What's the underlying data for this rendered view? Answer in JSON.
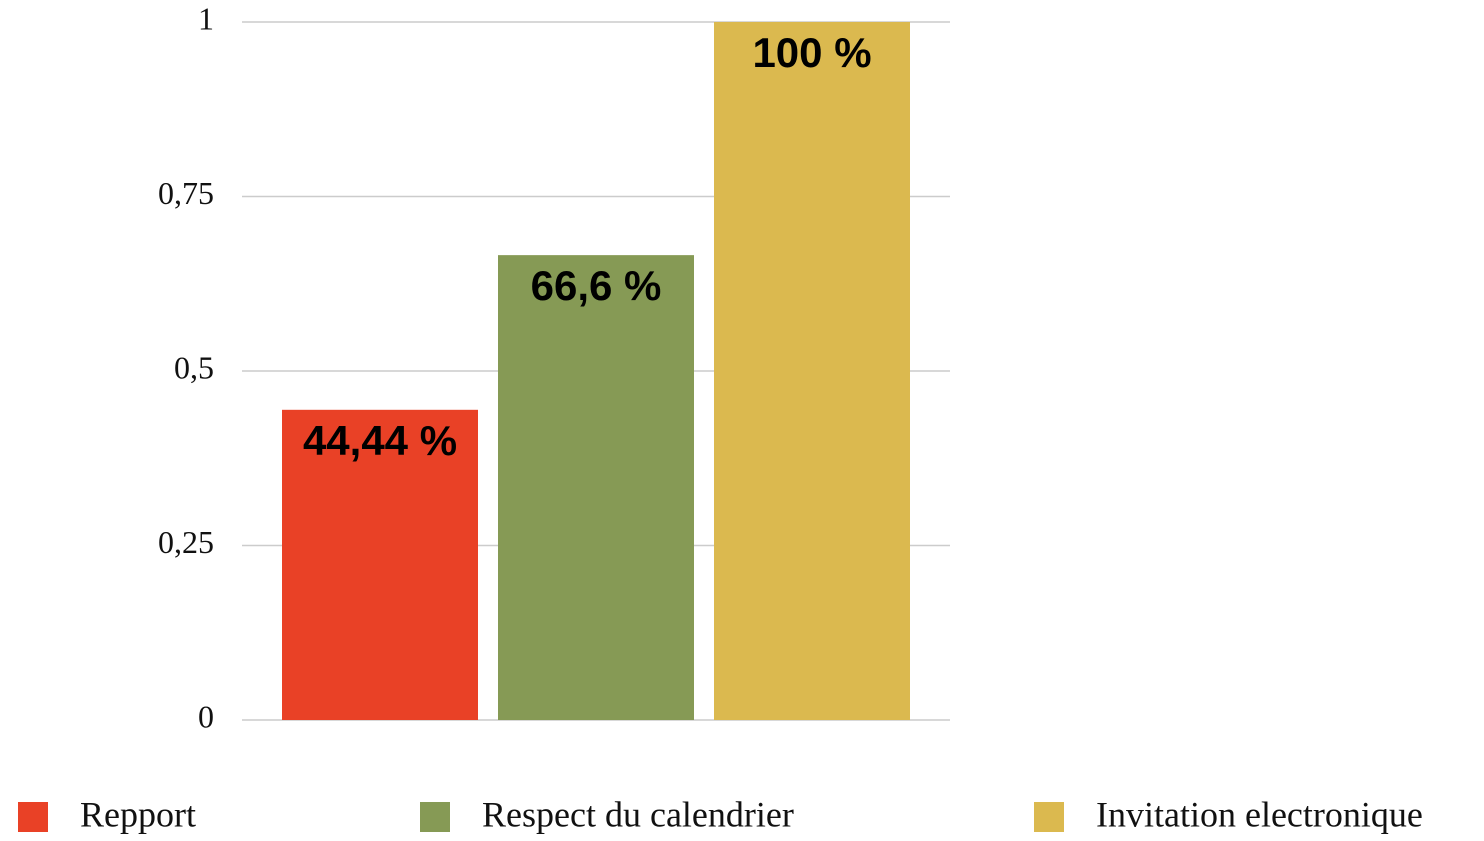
{
  "chart_data": {
    "type": "bar",
    "series": [
      {
        "name": "Repport",
        "color": "#e94126",
        "values": [
          0.4444
        ],
        "value_labels": [
          "44,44 %"
        ]
      },
      {
        "name": "Respect du calendrier",
        "color": "#869a55",
        "values": [
          0.666
        ],
        "value_labels": [
          "66,6 %"
        ]
      },
      {
        "name": "Invitation electronique",
        "color": "#dbb94f",
        "values": [
          1
        ],
        "value_labels": [
          "100 %"
        ]
      }
    ],
    "ylim": [
      0,
      1
    ],
    "yticks": [
      0,
      {
        "value": 0.25,
        "label": "0,25"
      },
      {
        "value": 0.5,
        "label": "0,5"
      },
      {
        "value": 0.75,
        "label": "0,75"
      },
      1
    ],
    "grid": true
  }
}
